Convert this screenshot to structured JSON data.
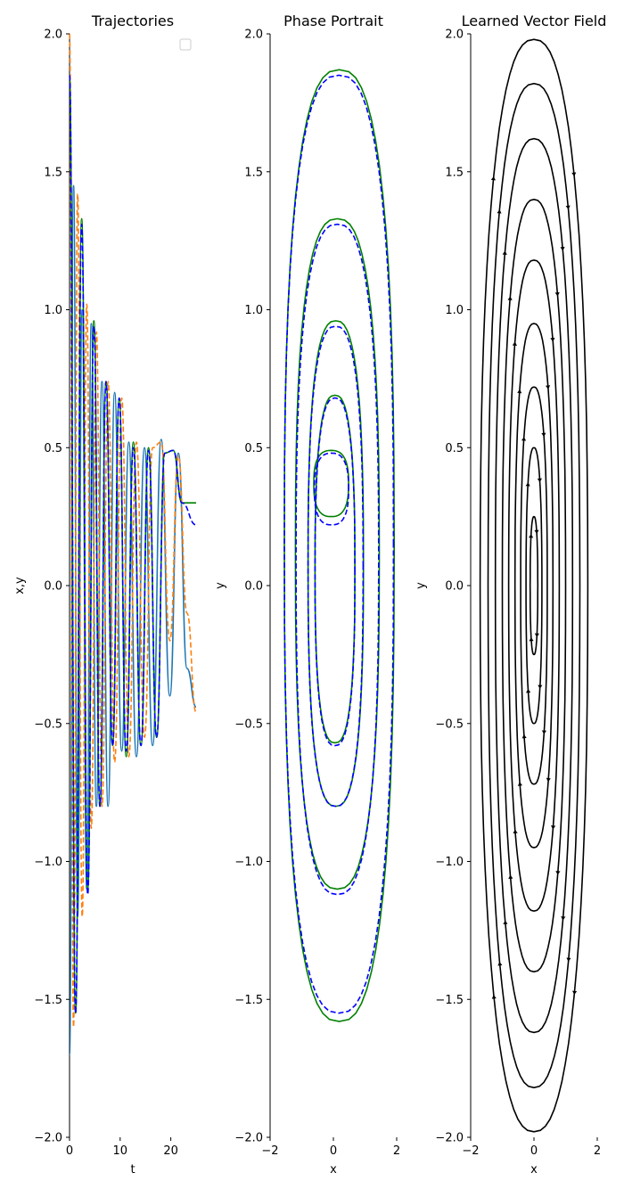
{
  "chart_data": [
    {
      "type": "line",
      "title": "Trajectories",
      "xlabel": "t",
      "ylabel": "x,y",
      "xlim": [
        0,
        25
      ],
      "ylim": [
        -2,
        2
      ],
      "xticks": [
        "0",
        "10",
        "20"
      ],
      "yticks": [
        "−2.0",
        "−1.5",
        "−1.0",
        "−0.5",
        "0.0",
        "0.5",
        "1.0",
        "1.5",
        "2.0"
      ],
      "legend": "top-right, empty",
      "series": [
        {
          "color": "#1f77b4",
          "style": "solid",
          "kind": "true-x",
          "x": [
            0,
            0.8,
            1.6,
            2.5,
            3.4,
            4.3,
            5.3,
            6.4,
            7.6,
            8.9,
            10.3,
            11.7,
            13.2,
            14.8,
            16.4,
            18.1,
            19.8,
            21.5,
            23.2,
            25
          ],
          "y": [
            -1.7,
            1.45,
            -1.2,
            1.0,
            -1.1,
            0.95,
            -0.8,
            0.74,
            -0.8,
            0.7,
            -0.6,
            0.52,
            -0.62,
            0.5,
            -0.58,
            0.53,
            -0.4,
            0.48,
            -0.3,
            -0.44
          ]
        },
        {
          "color": "#ff7f0e",
          "style": "dashed",
          "kind": "true-y",
          "x": [
            0,
            0.8,
            1.6,
            2.5,
            3.4,
            4.3,
            5.3,
            6.4,
            7.6,
            8.9,
            10.3,
            11.7,
            13.2,
            14.8,
            16.4,
            18.1,
            19.8,
            21.5,
            23.2,
            25
          ],
          "y": [
            2.0,
            -1.6,
            1.42,
            -1.2,
            1.02,
            -0.88,
            0.92,
            -0.8,
            0.74,
            -0.64,
            0.68,
            -0.62,
            0.52,
            -0.55,
            0.5,
            0.52,
            -0.2,
            0.47,
            -0.1,
            -0.46
          ]
        },
        {
          "color": "#008000",
          "style": "solid",
          "kind": "true-x",
          "x": [
            0,
            1.2,
            2.4,
            3.6,
            4.8,
            6.0,
            7.2,
            8.5,
            9.8,
            11.2,
            12.6,
            14.1,
            15.6,
            17.2,
            18.8,
            20.5,
            22.2,
            25
          ],
          "y": [
            1.85,
            -1.55,
            1.33,
            -1.1,
            0.96,
            -0.8,
            0.74,
            -0.58,
            0.68,
            -0.62,
            0.52,
            -0.58,
            0.5,
            -0.55,
            0.48,
            0.49,
            0.3,
            0.3
          ]
        },
        {
          "color": "#0000ff",
          "style": "dashed",
          "kind": "predicted",
          "x": [
            0,
            1.2,
            2.4,
            3.6,
            4.8,
            6.0,
            7.2,
            8.5,
            9.8,
            11.2,
            12.6,
            14.1,
            15.6,
            17.2,
            18.8,
            20.5,
            22.2,
            25
          ],
          "y": [
            1.85,
            -1.55,
            1.31,
            -1.12,
            0.94,
            -0.8,
            0.74,
            -0.58,
            0.68,
            -0.6,
            0.5,
            -0.58,
            0.49,
            -0.55,
            0.48,
            0.49,
            0.3,
            0.22
          ]
        }
      ]
    },
    {
      "type": "line",
      "title": "Phase Portrait",
      "xlabel": "x",
      "ylabel": "y",
      "xlim": [
        -2,
        2
      ],
      "ylim": [
        -2,
        2
      ],
      "xticks": [
        "−2",
        "0",
        "2"
      ],
      "yticks": [
        "−2.0",
        "−1.5",
        "−1.0",
        "−0.5",
        "0.0",
        "0.5",
        "1.0",
        "1.5",
        "2.0"
      ],
      "series": [
        {
          "color": "#008000",
          "style": "solid",
          "kind": "true",
          "loops": [
            {
              "xmax": 1.92,
              "xmin": -1.55,
              "ytop": 1.87,
              "ybot": -1.58
            },
            {
              "xmax": 1.45,
              "xmin": -1.2,
              "ytop": 1.33,
              "ybot": -1.1
            },
            {
              "xmax": 0.95,
              "xmin": -0.8,
              "ytop": 0.96,
              "ybot": -0.8
            },
            {
              "xmax": 0.68,
              "xmin": -0.58,
              "ytop": 0.69,
              "ybot": -0.57
            },
            {
              "xmax": 0.48,
              "xmin": -0.62,
              "ytop": 0.49,
              "ybot": 0.25
            }
          ]
        },
        {
          "color": "#0000ff",
          "style": "dashed",
          "kind": "predicted",
          "loops": [
            {
              "xmax": 1.9,
              "xmin": -1.55,
              "ytop": 1.85,
              "ybot": -1.55
            },
            {
              "xmax": 1.43,
              "xmin": -1.18,
              "ytop": 1.31,
              "ybot": -1.12
            },
            {
              "xmax": 0.94,
              "xmin": -0.8,
              "ytop": 0.94,
              "ybot": -0.8
            },
            {
              "xmax": 0.68,
              "xmin": -0.58,
              "ytop": 0.68,
              "ybot": -0.58
            },
            {
              "xmax": 0.48,
              "xmin": -0.6,
              "ytop": 0.48,
              "ybot": 0.22
            }
          ]
        }
      ]
    },
    {
      "type": "line",
      "title": "Learned Vector Field",
      "xlabel": "x",
      "ylabel": "y",
      "xlim": [
        -2,
        2
      ],
      "ylim": [
        -2,
        2
      ],
      "xticks": [
        "−2",
        "0",
        "2"
      ],
      "yticks": [
        "−2.0",
        "−1.5",
        "−1.0",
        "−0.5",
        "0.0",
        "0.5",
        "1.0",
        "1.5",
        "2.0"
      ],
      "streamline_color": "#000000",
      "orbits": [
        {
          "rx": 0.12,
          "ry": 0.25
        },
        {
          "rx": 0.25,
          "ry": 0.5
        },
        {
          "rx": 0.42,
          "ry": 0.72
        },
        {
          "rx": 0.6,
          "ry": 0.95
        },
        {
          "rx": 0.8,
          "ry": 1.18
        },
        {
          "rx": 1.0,
          "ry": 1.4
        },
        {
          "rx": 1.22,
          "ry": 1.62
        },
        {
          "rx": 1.45,
          "ry": 1.82
        },
        {
          "rx": 1.7,
          "ry": 1.98
        }
      ]
    }
  ]
}
